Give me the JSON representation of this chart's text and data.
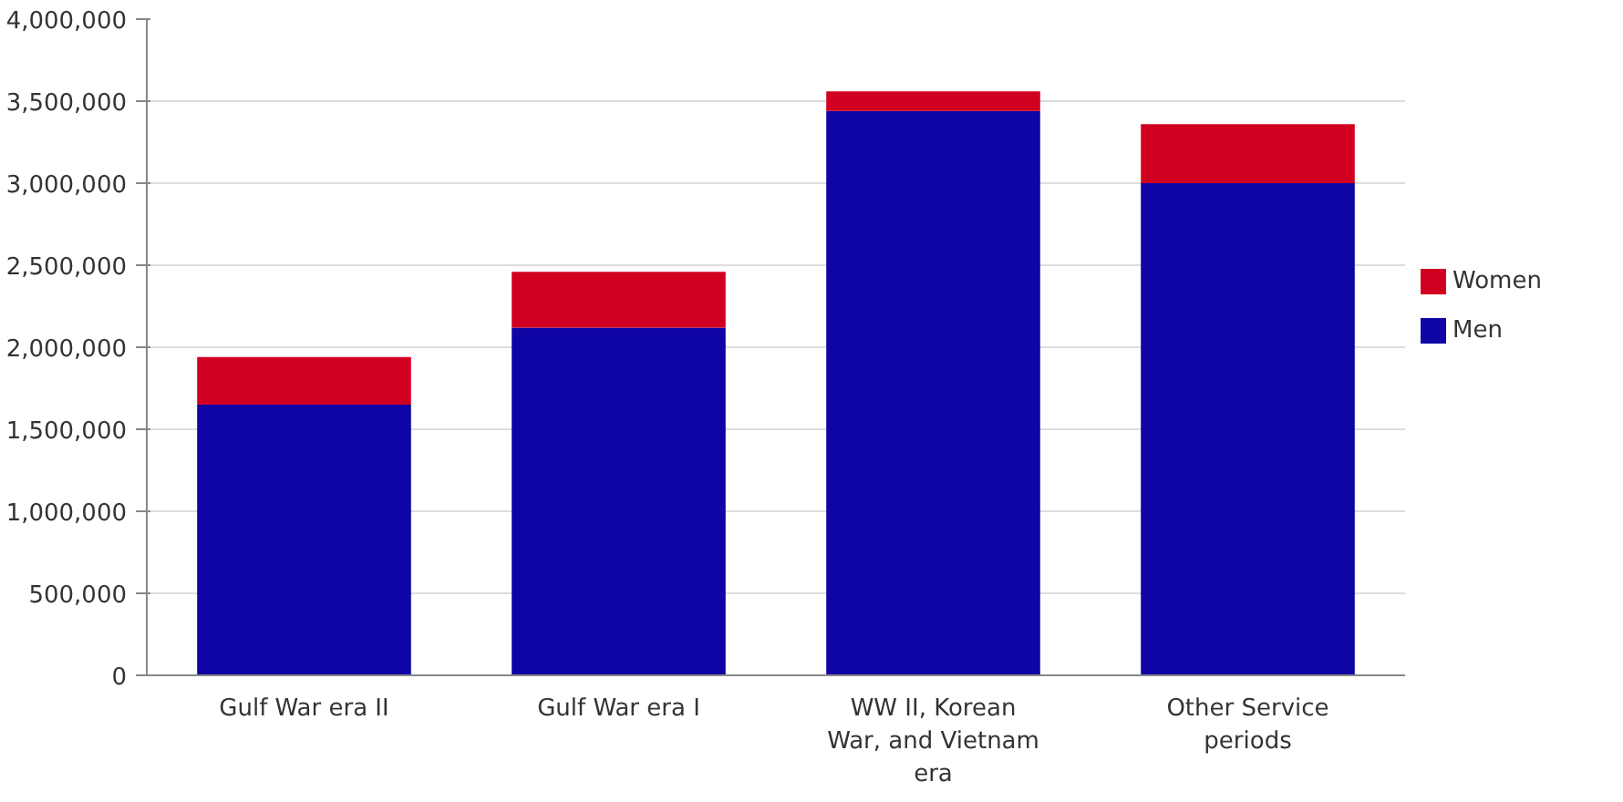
{
  "chart_data": {
    "type": "bar",
    "stacked": true,
    "categories": [
      "Gulf War era II",
      "Gulf War era I",
      "WW II, Korean War, and Vietnam era",
      "Other Service periods"
    ],
    "series": [
      {
        "name": "Men",
        "color": "#0f05a5",
        "values": [
          1650000,
          2120000,
          3440000,
          3000000
        ]
      },
      {
        "name": "Women",
        "color": "#d20020",
        "values": [
          290000,
          340000,
          120000,
          360000
        ]
      }
    ],
    "ylim": [
      0,
      4000000
    ],
    "yticks": [
      {
        "value": 0,
        "label": "0"
      },
      {
        "value": 500000,
        "label": "500,000"
      },
      {
        "value": 1000000,
        "label": "1,000,000"
      },
      {
        "value": 1500000,
        "label": "1,500,000"
      },
      {
        "value": 2000000,
        "label": "2,000,000"
      },
      {
        "value": 2500000,
        "label": "2,500,000"
      },
      {
        "value": 3000000,
        "label": "3,000,000"
      },
      {
        "value": 3500000,
        "label": "3,500,000"
      },
      {
        "value": 4000000,
        "label": "4,000,000"
      }
    ],
    "grid": "y",
    "legend": "right"
  }
}
